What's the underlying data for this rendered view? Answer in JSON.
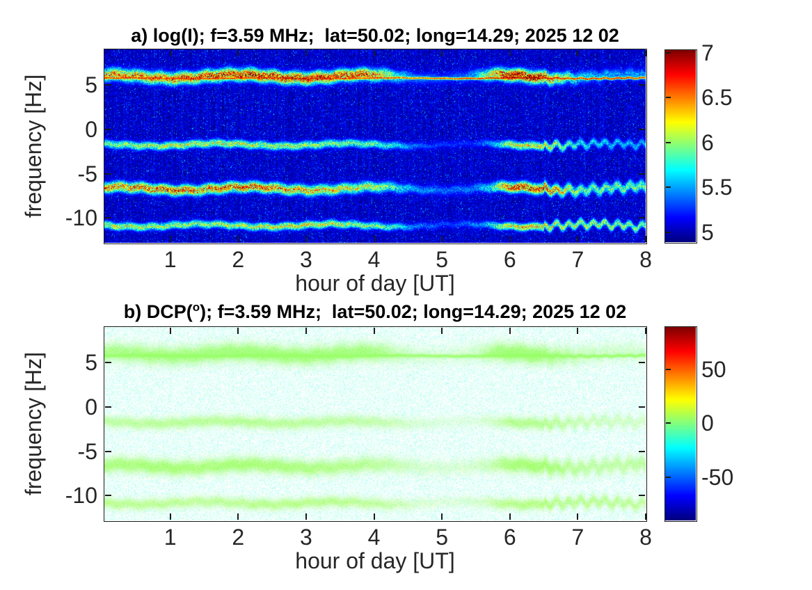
{
  "chart_data": [
    {
      "type": "heatmap",
      "panel_id": "a",
      "render": "dark-intensity",
      "title": "a) log(I); f=3.59 MHz;  lat=50.02; long=14.29; 2025 12 02",
      "xlabel": "hour of day [UT]",
      "ylabel": "frequency [Hz]",
      "xlim": [
        0.03,
        8
      ],
      "ylim": [
        -12.8,
        9.0
      ],
      "xticks": [
        1,
        2,
        3,
        4,
        5,
        6,
        7,
        8
      ],
      "yticks": [
        5,
        0,
        -5,
        -10
      ],
      "colormap": "jet",
      "clim": [
        4.89,
        7.03
      ],
      "colorbar_ticks": [
        5,
        5.5,
        6,
        6.5,
        7
      ],
      "background_value": 5.05,
      "noise": {
        "speckle_fraction": 0.05,
        "base_spread": 0.34,
        "streak_amp": 0.12
      },
      "bands": [
        {
          "core": true,
          "center_hz": 5.75,
          "width_hz": 0.11,
          "wiggle": [
            0.04,
            0.0,
            0.02,
            0.0,
            0.05
          ],
          "profile": [
            [
              0,
              1.85
            ],
            [
              4.2,
              1.8
            ],
            [
              4.5,
              1.7
            ],
            [
              5.6,
              1.8
            ],
            [
              5.8,
              2.0
            ],
            [
              6.6,
              2.0
            ],
            [
              7.0,
              1.9
            ],
            [
              8,
              1.85
            ]
          ]
        },
        {
          "core": false,
          "center_hz": 5.95,
          "width_hz": 0.5,
          "wiggle": [
            0.22,
            1.3,
            0.09,
            4.0,
            0.12
          ],
          "profile": [
            [
              0,
              1.45
            ],
            [
              0.5,
              1.55
            ],
            [
              1,
              1.6
            ],
            [
              1.5,
              1.7
            ],
            [
              2,
              1.8
            ],
            [
              2.5,
              1.85
            ],
            [
              3,
              1.8
            ],
            [
              3.5,
              1.75
            ],
            [
              4,
              1.6
            ],
            [
              4.3,
              0.95
            ],
            [
              4.6,
              0.5
            ],
            [
              5.1,
              0.35
            ],
            [
              5.5,
              0.6
            ],
            [
              5.8,
              1.6
            ],
            [
              6.0,
              2.0
            ],
            [
              6.4,
              1.95
            ],
            [
              6.7,
              1.3
            ],
            [
              7.0,
              0.8
            ],
            [
              7.4,
              0.6
            ],
            [
              8,
              0.55
            ]
          ]
        },
        {
          "core": false,
          "center_hz": -1.75,
          "width_hz": 0.32,
          "wiggle": [
            0.15,
            2.2,
            0.08,
            1.0,
            0.3
          ],
          "profile": [
            [
              0,
              1.0
            ],
            [
              0.5,
              1.1
            ],
            [
              1,
              1.15
            ],
            [
              1.5,
              1.2
            ],
            [
              2,
              1.2
            ],
            [
              2.5,
              1.15
            ],
            [
              3,
              1.1
            ],
            [
              3.5,
              1.05
            ],
            [
              4,
              0.95
            ],
            [
              4.3,
              0.75
            ],
            [
              4.6,
              0.45
            ],
            [
              5.0,
              0.3
            ],
            [
              5.5,
              0.3
            ],
            [
              5.8,
              0.7
            ],
            [
              6.0,
              1.25
            ],
            [
              6.3,
              1.35
            ],
            [
              6.6,
              1.2
            ],
            [
              6.9,
              0.85
            ],
            [
              7.3,
              0.7
            ],
            [
              8,
              0.6
            ]
          ]
        },
        {
          "core": false,
          "center_hz": -6.7,
          "width_hz": 0.42,
          "wiggle": [
            0.2,
            0.8,
            0.1,
            3.1,
            0.28
          ],
          "profile": [
            [
              0,
              1.5
            ],
            [
              0.5,
              1.62
            ],
            [
              1,
              1.68
            ],
            [
              1.5,
              1.6
            ],
            [
              2,
              1.66
            ],
            [
              2.5,
              1.58
            ],
            [
              3,
              1.45
            ],
            [
              3.5,
              1.32
            ],
            [
              4,
              1.15
            ],
            [
              4.3,
              0.9
            ],
            [
              4.6,
              0.55
            ],
            [
              5.0,
              0.45
            ],
            [
              5.4,
              0.45
            ],
            [
              5.7,
              0.75
            ],
            [
              5.95,
              1.6
            ],
            [
              6.2,
              1.8
            ],
            [
              6.5,
              1.72
            ],
            [
              6.8,
              1.25
            ],
            [
              7.1,
              1.0
            ],
            [
              7.5,
              1.0
            ],
            [
              8,
              1.05
            ]
          ]
        },
        {
          "core": false,
          "center_hz": -10.85,
          "width_hz": 0.3,
          "wiggle": [
            0.16,
            2.9,
            0.09,
            0.4,
            0.3
          ],
          "profile": [
            [
              0,
              1.25
            ],
            [
              0.5,
              1.18
            ],
            [
              1,
              1.12
            ],
            [
              1.5,
              1.08
            ],
            [
              2,
              1.15
            ],
            [
              2.5,
              1.28
            ],
            [
              3,
              1.3
            ],
            [
              3.5,
              1.2
            ],
            [
              4,
              1.05
            ],
            [
              4.3,
              0.85
            ],
            [
              4.6,
              0.5
            ],
            [
              5.1,
              0.32
            ],
            [
              5.6,
              0.55
            ],
            [
              5.9,
              1.2
            ],
            [
              6.2,
              1.42
            ],
            [
              6.5,
              1.38
            ],
            [
              6.8,
              1.15
            ],
            [
              7.2,
              1.18
            ],
            [
              7.6,
              1.12
            ],
            [
              8,
              1.05
            ]
          ]
        }
      ]
    },
    {
      "type": "heatmap",
      "panel_id": "b",
      "render": "white-dcp",
      "title": "b) DCP(°); f=3.59 MHz;  lat=50.02; long=14.29; 2025 12 02",
      "title_parts": {
        "pre": "b) DCP(",
        "sup": "o",
        "post": "); f=3.59 MHz;  lat=50.02; long=14.29; 2025 12 02"
      },
      "xlabel": "hour of day [UT]",
      "ylabel": "frequency [Hz]",
      "xlim": [
        0.03,
        8
      ],
      "ylim": [
        -12.8,
        9.0
      ],
      "xticks": [
        1,
        2,
        3,
        4,
        5,
        6,
        7,
        8
      ],
      "yticks": [
        5,
        0,
        -5,
        -10
      ],
      "colormap": "jet",
      "clim": [
        -90.5,
        89.8
      ],
      "colorbar_ticks": [
        50,
        0,
        -50
      ],
      "noise": {
        "fill_fraction": 0.62,
        "dcp_range": [
          -25,
          -5
        ],
        "alpha_max": 0.38
      },
      "bands": [
        {
          "core": true,
          "dcp_deg": 4,
          "center_hz": 5.75,
          "width_hz": 0.13,
          "wiggle": [
            0.04,
            0.0,
            0.02,
            0.0,
            0.05
          ],
          "profile": [
            [
              0,
              1.85
            ],
            [
              4.2,
              1.8
            ],
            [
              4.5,
              1.7
            ],
            [
              5.6,
              1.8
            ],
            [
              5.8,
              2.0
            ],
            [
              6.6,
              2.0
            ],
            [
              7.0,
              1.9
            ],
            [
              8,
              1.85
            ]
          ]
        },
        {
          "core": false,
          "dcp_deg": 4,
          "center_hz": 5.95,
          "width_hz": 0.68,
          "wiggle": [
            0.22,
            1.3,
            0.09,
            4.0,
            0.12
          ],
          "profile": [
            [
              0,
              1.45
            ],
            [
              0.5,
              1.55
            ],
            [
              1,
              1.6
            ],
            [
              1.5,
              1.7
            ],
            [
              2,
              1.8
            ],
            [
              2.5,
              1.85
            ],
            [
              3,
              1.8
            ],
            [
              3.5,
              1.75
            ],
            [
              4,
              1.6
            ],
            [
              4.3,
              0.95
            ],
            [
              4.6,
              0.5
            ],
            [
              5.1,
              0.35
            ],
            [
              5.5,
              0.6
            ],
            [
              5.8,
              1.6
            ],
            [
              6.0,
              2.0
            ],
            [
              6.4,
              1.95
            ],
            [
              6.7,
              1.3
            ],
            [
              7.0,
              0.8
            ],
            [
              7.4,
              0.6
            ],
            [
              8,
              0.55
            ]
          ]
        },
        {
          "core": false,
          "dcp_deg": 5,
          "center_hz": -1.75,
          "width_hz": 0.44,
          "wiggle": [
            0.15,
            2.2,
            0.08,
            1.0,
            0.3
          ],
          "profile": [
            [
              0,
              1.0
            ],
            [
              0.5,
              1.1
            ],
            [
              1,
              1.15
            ],
            [
              1.5,
              1.2
            ],
            [
              2,
              1.2
            ],
            [
              2.5,
              1.15
            ],
            [
              3,
              1.1
            ],
            [
              3.5,
              1.05
            ],
            [
              4,
              0.95
            ],
            [
              4.3,
              0.75
            ],
            [
              4.6,
              0.45
            ],
            [
              5.0,
              0.3
            ],
            [
              5.5,
              0.3
            ],
            [
              5.8,
              0.7
            ],
            [
              6.0,
              1.25
            ],
            [
              6.3,
              1.35
            ],
            [
              6.6,
              1.2
            ],
            [
              6.9,
              0.85
            ],
            [
              7.3,
              0.7
            ],
            [
              8,
              0.6
            ]
          ]
        },
        {
          "core": false,
          "dcp_deg": 5,
          "center_hz": -6.7,
          "width_hz": 0.57,
          "wiggle": [
            0.2,
            0.8,
            0.1,
            3.1,
            0.28
          ],
          "profile": [
            [
              0,
              1.5
            ],
            [
              0.5,
              1.62
            ],
            [
              1,
              1.68
            ],
            [
              1.5,
              1.6
            ],
            [
              2,
              1.66
            ],
            [
              2.5,
              1.58
            ],
            [
              3,
              1.45
            ],
            [
              3.5,
              1.32
            ],
            [
              4,
              1.15
            ],
            [
              4.3,
              0.9
            ],
            [
              4.6,
              0.55
            ],
            [
              5.0,
              0.45
            ],
            [
              5.4,
              0.45
            ],
            [
              5.7,
              0.75
            ],
            [
              5.95,
              1.6
            ],
            [
              6.2,
              1.8
            ],
            [
              6.5,
              1.72
            ],
            [
              6.8,
              1.25
            ],
            [
              7.1,
              1.0
            ],
            [
              7.5,
              1.0
            ],
            [
              8,
              1.05
            ]
          ]
        },
        {
          "core": false,
          "dcp_deg": 6,
          "center_hz": -10.85,
          "width_hz": 0.41,
          "wiggle": [
            0.16,
            2.9,
            0.09,
            0.4,
            0.3
          ],
          "profile": [
            [
              0,
              1.25
            ],
            [
              0.5,
              1.18
            ],
            [
              1,
              1.12
            ],
            [
              1.5,
              1.08
            ],
            [
              2,
              1.15
            ],
            [
              2.5,
              1.28
            ],
            [
              3,
              1.3
            ],
            [
              3.5,
              1.2
            ],
            [
              4,
              1.05
            ],
            [
              4.3,
              0.85
            ],
            [
              4.6,
              0.5
            ],
            [
              5.1,
              0.32
            ],
            [
              5.6,
              0.55
            ],
            [
              5.9,
              1.2
            ],
            [
              6.2,
              1.42
            ],
            [
              6.5,
              1.38
            ],
            [
              6.8,
              1.15
            ],
            [
              7.2,
              1.18
            ],
            [
              7.6,
              1.12
            ],
            [
              8,
              1.05
            ]
          ]
        }
      ]
    }
  ]
}
